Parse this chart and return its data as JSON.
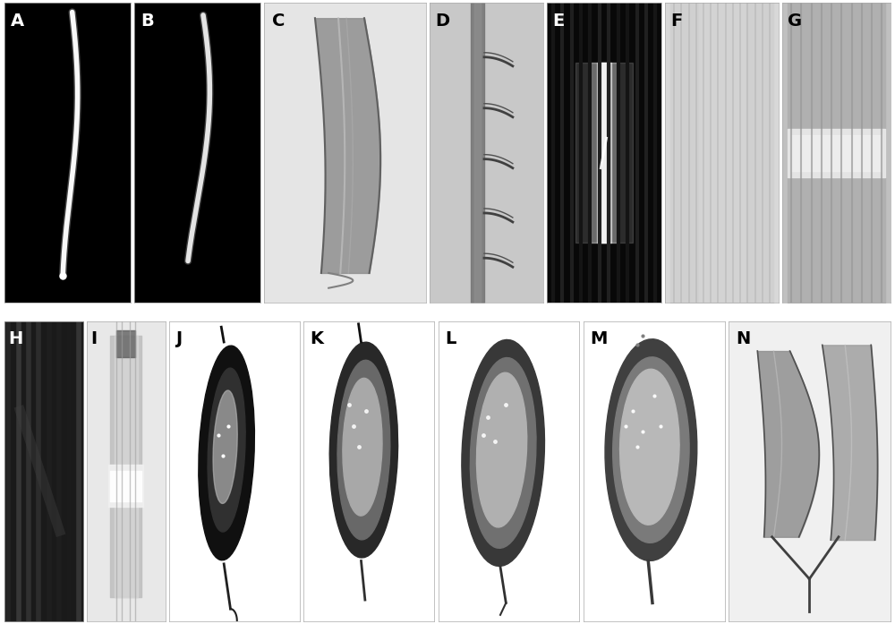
{
  "panels": [
    "A",
    "B",
    "C",
    "D",
    "E",
    "F",
    "G",
    "H",
    "I",
    "J",
    "K",
    "L",
    "M",
    "N"
  ],
  "row1": [
    "A",
    "B",
    "C",
    "D",
    "E",
    "F",
    "G"
  ],
  "row2": [
    "H",
    "I",
    "J",
    "K",
    "L",
    "M",
    "N"
  ],
  "bg_color": "#ffffff",
  "label_fontsize": 14,
  "label_fontweight": "bold",
  "figure_width": 10.0,
  "figure_height": 6.97,
  "dpi": 100,
  "row1_widths": [
    1.05,
    1.05,
    1.35,
    0.95,
    0.95,
    0.95,
    0.9
  ],
  "row2_widths": [
    0.75,
    0.75,
    1.25,
    1.25,
    1.35,
    1.35,
    1.55
  ],
  "panel_A_bg": "#000000",
  "panel_B_bg": "#000000",
  "panel_C_bg": "#e0e0e0",
  "panel_D_bg": "#c0c0c0",
  "panel_E_bg": "#050505",
  "panel_F_bg": "#d5d5d5",
  "panel_G_bg": "#b8b8b8",
  "panel_H_bg": "#202020",
  "panel_I_bg": "#e0e0e0",
  "panel_J_bg": "#ffffff",
  "panel_K_bg": "#ffffff",
  "panel_L_bg": "#ffffff",
  "panel_M_bg": "#ffffff",
  "panel_N_bg": "#f0f0f0"
}
